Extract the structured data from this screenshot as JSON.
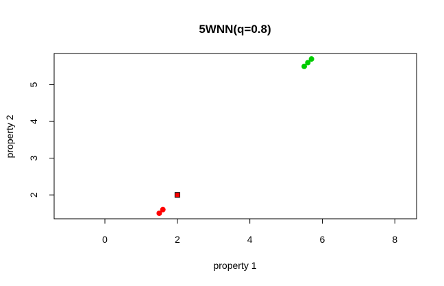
{
  "chart_data": {
    "type": "scatter",
    "title": "5WNN(q=0.8)",
    "xlabel": "property 1",
    "ylabel": "property 2",
    "xlim": [
      -1.4,
      8.6
    ],
    "ylim": [
      1.35,
      5.85
    ],
    "xticks": [
      0,
      2,
      4,
      6,
      8
    ],
    "yticks": [
      2,
      3,
      4,
      5
    ],
    "grid": false,
    "series": [
      {
        "marker": "circle",
        "color": "#ff0000",
        "points": [
          [
            1.5,
            1.5
          ],
          [
            1.6,
            1.6
          ]
        ]
      },
      {
        "marker": "circle",
        "color": "#00cc00",
        "points": [
          [
            5.5,
            5.5
          ],
          [
            5.6,
            5.6
          ],
          [
            5.7,
            5.7
          ]
        ]
      },
      {
        "marker": "square",
        "color": "#ff0000",
        "stroke": "#000000",
        "points": [
          [
            2.0,
            2.0
          ]
        ]
      }
    ]
  }
}
